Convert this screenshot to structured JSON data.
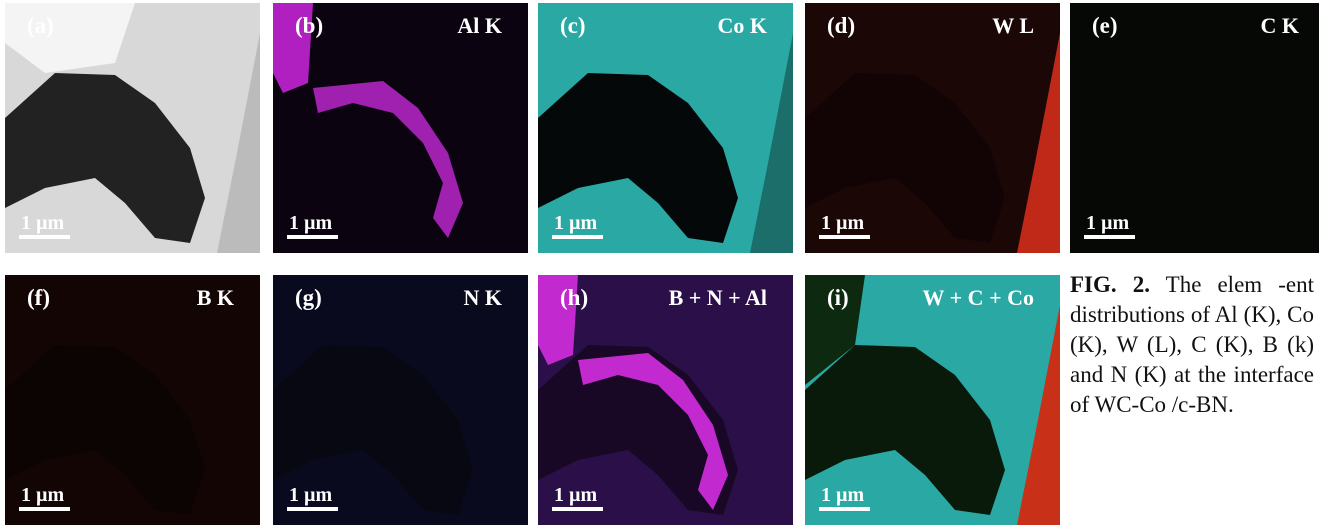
{
  "figure": {
    "panels": [
      {
        "label": "(a)",
        "scale_bar": "1 µm"
      },
      {
        "label": "(b)",
        "element": "Al K",
        "scale_bar": "1 µm"
      },
      {
        "label": "(c)",
        "element": "Co K",
        "scale_bar": "1 µm"
      },
      {
        "label": "(d)",
        "element": "W L",
        "scale_bar": "1 µm"
      },
      {
        "label": "(e)",
        "element": "C K",
        "scale_bar": "1 µm"
      },
      {
        "label": "(f)",
        "element": "B K",
        "scale_bar": "1 µm"
      },
      {
        "label": "(g)",
        "element": "N K",
        "scale_bar": "1 µm"
      },
      {
        "label": "(h)",
        "element": "B + N + Al",
        "scale_bar": "1 µm"
      },
      {
        "label": "(i)",
        "element": "W + C + Co",
        "scale_bar": "1 µm"
      }
    ],
    "caption": {
      "number": "FIG. 2.",
      "text": "The elem -ent distributions of Al (K), Co (K), W (L), C (K), B (k) and N (K) at the interface of WC-Co /c-BN."
    }
  }
}
